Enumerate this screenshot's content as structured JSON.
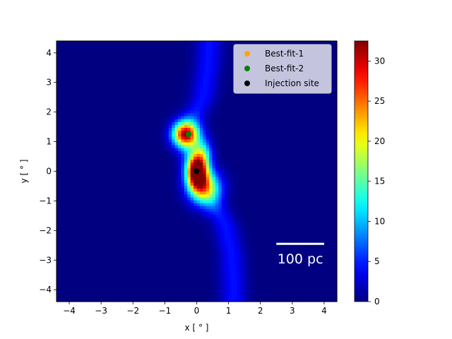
{
  "chart_data": {
    "type": "heatmap",
    "title": "",
    "xlabel": "x [$^\\circ$]",
    "ylabel": "y [$^\\circ$]",
    "xlabel_display": "x [ ° ]",
    "ylabel_display": "y [ ° ]",
    "xlim": [
      -4.4,
      4.4
    ],
    "ylim": [
      -4.4,
      4.4
    ],
    "xticks": [
      -4,
      -3,
      -2,
      -1,
      0,
      1,
      2,
      3,
      4
    ],
    "yticks": [
      -4,
      -3,
      -2,
      -1,
      0,
      1,
      2,
      3,
      4
    ],
    "colormap": "jet",
    "colorbar": {
      "min": 0,
      "max": 32.5,
      "ticks": [
        0,
        5,
        10,
        15,
        20,
        25,
        30
      ]
    },
    "intensity_components": [
      {
        "x": -0.35,
        "y": 1.25,
        "sx": 0.28,
        "sy": 0.3,
        "amp": 28
      },
      {
        "x": 0.0,
        "y": 0.0,
        "sx": 0.22,
        "sy": 0.4,
        "amp": 32
      },
      {
        "x": 0.25,
        "y": -0.55,
        "sx": 0.35,
        "sy": 0.4,
        "amp": 18
      },
      {
        "x": 0.2,
        "y": 0.6,
        "sx": 0.2,
        "sy": 0.35,
        "amp": 10
      }
    ],
    "ridge": {
      "amp": 4.5,
      "width": 0.28,
      "path": [
        [
          0.4,
          4.4
        ],
        [
          0.35,
          3.5
        ],
        [
          0.2,
          2.5
        ],
        [
          -0.2,
          1.6
        ],
        [
          -0.3,
          1.2
        ],
        [
          0.0,
          0.0
        ],
        [
          0.4,
          -0.9
        ],
        [
          0.9,
          -1.8
        ],
        [
          1.1,
          -2.8
        ],
        [
          1.15,
          -3.8
        ],
        [
          1.15,
          -4.4
        ]
      ]
    },
    "points": [
      {
        "name": "Best-fit-1",
        "x": -0.25,
        "y": 1.25,
        "color": "#ffa500"
      },
      {
        "name": "Best-fit-2",
        "x": -0.25,
        "y": 1.25,
        "color": "#008000"
      },
      {
        "name": "Injection site",
        "x": 0.0,
        "y": 0.0,
        "color": "#000000"
      }
    ],
    "legend": {
      "placement": "top-right"
    },
    "scalebar": {
      "label": "100 pc",
      "x_start": 2.5,
      "x_end": 4.0,
      "y": -2.45
    }
  }
}
